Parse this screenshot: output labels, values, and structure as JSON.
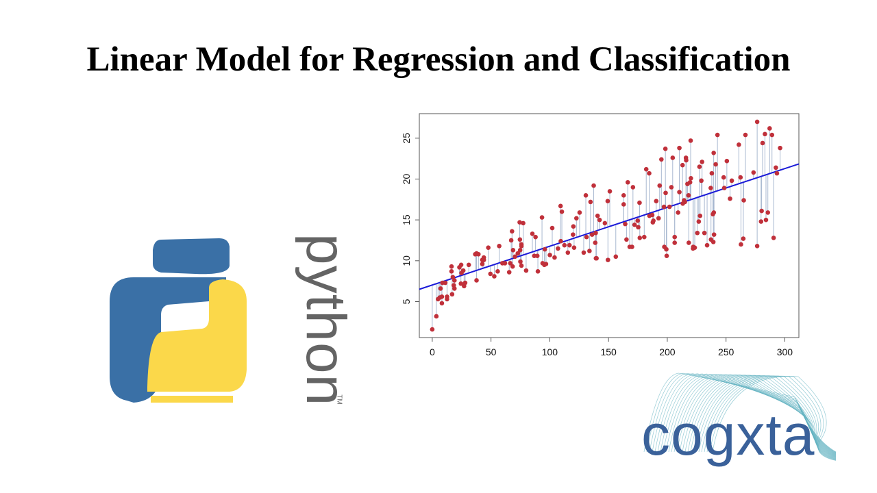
{
  "slide": {
    "title": "Linear Model for Regression and Classification",
    "python_logo": {
      "wordmark": "python",
      "trademark": "TM",
      "colors": {
        "blue": "#3a70a6",
        "yellow": "#fbd84a"
      }
    },
    "cogxta_logo": {
      "wordmark": "cogxta",
      "colors": {
        "text": "#3a619a",
        "waves": "#5fb0c0"
      }
    }
  },
  "chart_data": {
    "type": "scatter",
    "title": "",
    "xlabel": "",
    "ylabel": "",
    "xlim": [
      -11,
      312
    ],
    "ylim": [
      0.6,
      28
    ],
    "xticks": [
      0,
      50,
      100,
      150,
      200,
      250,
      300
    ],
    "yticks": [
      5,
      10,
      15,
      20,
      25
    ],
    "grid": false,
    "point_color": "#c0303a",
    "line_color": "#1a1ad8",
    "residual_color": "#a8b8d0",
    "regression_line": {
      "intercept": 7.03,
      "slope": 0.0475
    },
    "x": [
      0,
      3.5,
      4.9,
      6.4,
      7.1,
      8.2,
      8.2,
      8.7,
      11.1,
      12.6,
      12.6,
      16.4,
      16.4,
      16.9,
      17.5,
      18.3,
      18.9,
      18.9,
      23.1,
      24.6,
      24.4,
      24.9,
      26.4,
      27.1,
      28.0,
      31.1,
      36.6,
      37.7,
      37.7,
      39.3,
      42.6,
      42.6,
      43.9,
      43.9,
      47.7,
      49.5,
      52.8,
      55.7,
      57.0,
      59.7,
      61.9,
      65.5,
      66.4,
      67.2,
      67.9,
      68.4,
      68.8,
      70.4,
      72.8,
      74.4,
      74.6,
      74.8,
      75.0,
      75.9,
      75.9,
      75.9,
      77.4,
      79.9,
      85.2,
      86.8,
      87.9,
      89.4,
      89.9,
      93.4,
      93.9,
      95.4,
      95.8,
      96.8,
      100.1,
      102.1,
      104.1,
      107.0,
      109.2,
      109.4,
      110.3,
      112.5,
      115.4,
      116.8,
      119.8,
      120.1,
      120.7,
      122.7,
      125.4,
      128.9,
      130.7,
      131.3,
      133.8,
      134.7,
      136.0,
      137.4,
      138.7,
      139.1,
      139.3,
      139.8,
      140.7,
      142.4,
      146.9,
      149.3,
      149.5,
      151.1,
      156.2,
      162.9,
      162.9,
      164.2,
      165.3,
      166.4,
      168.0,
      170.0,
      170.8,
      172.2,
      174.8,
      175.3,
      176.4,
      176.6,
      180.4,
      182.1,
      184.6,
      184.8,
      187.2,
      187.7,
      188.2,
      190.6,
      192.6,
      193.5,
      195.0,
      197.2,
      197.5,
      198.4,
      198.6,
      199.2,
      199.5,
      201.9,
      203.5,
      204.6,
      206.3,
      206.3,
      209.2,
      210.3,
      210.3,
      213.0,
      213.2,
      214.3,
      215.0,
      215.9,
      216.1,
      217.2,
      218.1,
      218.3,
      219.4,
      219.9,
      220.1,
      221.9,
      222.1,
      223.4,
      225.6,
      226.8,
      227.4,
      227.9,
      229.0,
      229.6,
      231.6,
      233.9,
      237.0,
      237.2,
      237.9,
      238.8,
      239.2,
      239.5,
      239.6,
      239.8,
      241.2,
      242.7,
      248.0,
      248.5,
      250.7,
      253.4,
      254.9,
      260.9,
      262.3,
      262.7,
      264.7,
      265.1,
      266.5,
      273.4,
      276.5,
      276.5,
      279.8,
      280.3,
      281.1,
      283.1,
      284.0,
      285.6,
      287.1,
      289.1,
      290.5,
      292.4,
      293.3,
      296.0
    ],
    "y": [
      1.6,
      3.2,
      5.3,
      5.5,
      6.6,
      5.6,
      4.8,
      7.3,
      7.3,
      5.6,
      5.3,
      9.3,
      8.7,
      5.9,
      8.0,
      7.0,
      7.6,
      6.6,
      9.2,
      9.5,
      7.2,
      8.5,
      8.8,
      6.9,
      7.3,
      9.5,
      10.8,
      10.9,
      7.6,
      10.8,
      9.6,
      10.1,
      10.4,
      10.1,
      11.6,
      8.4,
      8.1,
      8.7,
      11.8,
      9.7,
      9.7,
      8.6,
      9.7,
      12.5,
      13.6,
      9.3,
      11.3,
      10.5,
      10.9,
      14.7,
      12.6,
      11.3,
      9.9,
      11.8,
      12.0,
      9.4,
      14.6,
      8.8,
      13.3,
      10.6,
      12.9,
      10.6,
      8.7,
      15.3,
      9.7,
      9.5,
      11.4,
      9.6,
      10.7,
      14.0,
      10.4,
      11.5,
      16.7,
      12.4,
      16.0,
      11.9,
      11.0,
      11.9,
      13.2,
      14.2,
      11.6,
      15.2,
      15.9,
      11.0,
      18.0,
      12.9,
      11.2,
      17.2,
      13.2,
      19.2,
      12.2,
      13.4,
      10.3,
      10.3,
      15.5,
      15.0,
      14.6,
      17.3,
      10.1,
      18.5,
      10.5,
      18.0,
      16.9,
      14.5,
      12.6,
      19.6,
      11.7,
      11.7,
      19.0,
      14.4,
      14.9,
      14.1,
      17.1,
      12.8,
      12.9,
      21.2,
      20.7,
      15.5,
      15.6,
      14.7,
      14.9,
      17.3,
      15.2,
      19.2,
      22.4,
      16.6,
      11.7,
      23.7,
      18.3,
      11.4,
      10.6,
      16.6,
      19.0,
      22.6,
      12.9,
      12.2,
      15.9,
      23.8,
      18.4,
      21.7,
      17.0,
      17.4,
      17.2,
      22.6,
      22.3,
      19.4,
      18.0,
      12.2,
      19.6,
      24.7,
      20.1,
      11.5,
      11.7,
      11.6,
      13.4,
      14.8,
      21.5,
      15.5,
      19.8,
      22.1,
      13.4,
      11.9,
      18.9,
      12.6,
      20.7,
      15.7,
      12.3,
      23.2,
      15.9,
      13.2,
      21.8,
      25.4,
      20.2,
      18.9,
      22.2,
      17.6,
      19.8,
      24.2,
      20.2,
      12.0,
      12.7,
      17.4,
      25.4,
      20.8,
      27.0,
      11.8,
      14.8,
      16.1,
      24.4,
      25.5,
      15.0,
      15.9,
      26.2,
      25.4,
      12.8,
      21.4,
      20.7,
      23.8
    ]
  }
}
